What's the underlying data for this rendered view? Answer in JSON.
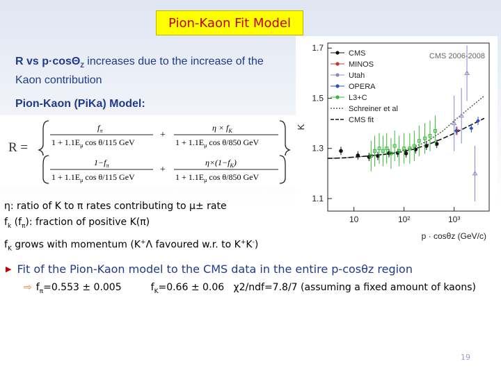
{
  "slide": {
    "title": "Pion-Kaon Fit Model",
    "intro_line1": "R vs p·cosΘ",
    "intro_line1_sub": "Z",
    "intro_line1_rest": " increases due to the increase of the",
    "intro_line2": "Kaon contribution",
    "model_title": "Pion-Kaon (PiKa) Model:",
    "formula": {
      "R": "R =",
      "num_f": "f",
      "num_f_sub": "π",
      "den1": "1 + 1.1E",
      "den1_sub": "μ",
      "den1_rest": " cos θ/115 GeV",
      "den2_rest": " cos θ/850 GeV",
      "eta_fK": "η × f",
      "eta_fK_sub": "K",
      "one_minus_fpi": "1−f",
      "eta_one_minus_fK": "η×(1−f",
      "plus": "+"
    },
    "defs": {
      "eta_line": "η: ratio of K to π rates contributing to μ± rate",
      "fk_line_a": "f",
      "fk_line_a_sub": "k",
      "fk_line_b": " (f",
      "fk_line_b_sub": "π",
      "fk_line_c": "): fraction of positive K(π)",
      "fk_grow_a": "f",
      "fk_grow_a_sub": "K",
      "fk_grow_b": " grows with momentum (K",
      "fk_grow_c": "Λ favoured w.r. to K",
      "fk_grow_d": "K",
      "fk_grow_e": ")"
    },
    "bullet_main": "Fit of the Pion-Kaon model to the CMS data in the entire p-cosθz region",
    "bullet_sub": {
      "fpi_label": "f",
      "fpi_sub": "π",
      "fpi_val": "=0.553 ± 0.005",
      "fk_label": "f",
      "fk_sub": "K",
      "fk_val": "=0.66 ± 0.06",
      "chi": "χ2/ndf=7.8/7 (assuming a fixed amount of kaons)"
    },
    "page_number": "19"
  },
  "chart_data": {
    "type": "scatter",
    "annotation": "CMS 2006-2008",
    "xlabel": "p · cosθz (GeV/c)",
    "ylabel": "K",
    "xscale": "log",
    "xlim": [
      3,
      5000
    ],
    "ylim": [
      1.05,
      1.72
    ],
    "yticks": [
      "1.1",
      "1.3",
      "1.5",
      "1.7"
    ],
    "xticks": [
      "10",
      "10²",
      "10³"
    ],
    "legend_position": "top-left",
    "legend": [
      "CMS",
      "MINOS",
      "Utah",
      "OPERA",
      "L3+C",
      "Schreiner et al",
      "CMS fit"
    ],
    "colors": {
      "CMS": "#111111",
      "MINOS": "#d03030",
      "Utah": "#8888cc",
      "OPERA": "#3050c0",
      "L3+C": "#33bb33",
      "Schreiner": "#333333",
      "fit": "#111111"
    },
    "series": [
      {
        "name": "CMS",
        "x": [
          5.5,
          12,
          20,
          30,
          50,
          75,
          110,
          170,
          280,
          450
        ],
        "y": [
          1.29,
          1.272,
          1.266,
          1.27,
          1.281,
          1.282,
          1.28,
          1.296,
          1.31,
          1.318
        ]
      },
      {
        "name": "MINOS",
        "x": [
          1150
        ],
        "y": [
          1.37
        ]
      },
      {
        "name": "Utah",
        "x": [
          1000,
          1400,
          1800,
          2600
        ],
        "y": [
          1.4,
          1.43,
          1.6,
          1.2
        ]
      },
      {
        "name": "OPERA",
        "x": [
          1100,
          2200,
          3000
        ],
        "y": [
          1.37,
          1.38,
          1.41
        ]
      },
      {
        "name": "L3+C",
        "x": [
          22,
          26,
          32,
          38,
          45,
          55,
          65,
          80,
          100,
          130,
          160,
          200,
          260,
          330,
          420
        ],
        "y": [
          1.27,
          1.29,
          1.3,
          1.29,
          1.3,
          1.28,
          1.31,
          1.29,
          1.3,
          1.3,
          1.31,
          1.33,
          1.34,
          1.35,
          1.37
        ]
      }
    ],
    "fit_curve": {
      "x": [
        3,
        6,
        10,
        20,
        40,
        80,
        150,
        300,
        600,
        1000,
        2000,
        4000
      ],
      "y": [
        1.26,
        1.262,
        1.265,
        1.27,
        1.276,
        1.284,
        1.296,
        1.315,
        1.34,
        1.36,
        1.39,
        1.42
      ]
    },
    "schreiner_curve": {
      "x": [
        3,
        6,
        10,
        20,
        40,
        80,
        150,
        300,
        600,
        1000,
        2000,
        4000
      ],
      "y": [
        1.26,
        1.262,
        1.265,
        1.27,
        1.277,
        1.287,
        1.303,
        1.33,
        1.37,
        1.41,
        1.46,
        1.51
      ]
    }
  }
}
